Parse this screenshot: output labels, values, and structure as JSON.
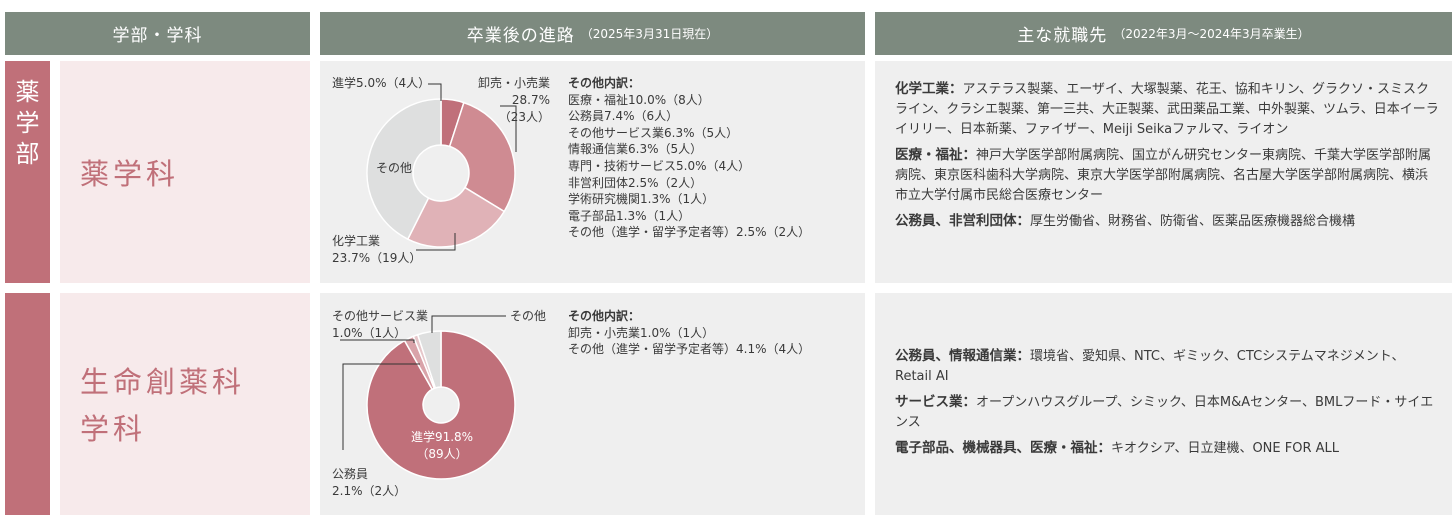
{
  "headers": {
    "faculty": "学部・学科",
    "career": "卒業後の進路",
    "career_note": "（2025年3月31日現在）",
    "employers": "主な就職先",
    "employers_note": "（2022年3月～2024年3月卒業生）"
  },
  "faculty": {
    "name": "薬学部",
    "chars": [
      "薬",
      "学",
      "部"
    ]
  },
  "departments": [
    {
      "name": "薬学科",
      "labels": {
        "shingaku": "進学5.0%（4人）",
        "oroshi": "卸売・小売業\n28.7%\n（23人）",
        "kagaku": "化学工業\n23.7%（19人）",
        "sonota": "その他"
      },
      "others_title": "その他内訳：",
      "others": [
        "医療・福祉10.0%（8人）",
        "公務員7.4%（6人）",
        "その他サービス業6.3%（5人）",
        "情報通信業6.3%（5人）",
        "専門・技術サービス5.0%（4人）",
        "非営利団体2.5%（2人）",
        "学術研究機関1.3%（1人）",
        "電子部品1.3%（1人）",
        "その他（進学・留学予定者等）2.5%（2人）"
      ],
      "employers": [
        {
          "key": "化学工業：",
          "text": "アステラス製薬、エーザイ、大塚製薬、花王、協和キリン、グラクソ・スミスクライン、クラシエ製薬、第一三共、大正製薬、武田薬品工業、中外製薬、ツムラ、日本イーライリリー、日本新薬、ファイザー、Meiji Seikaファルマ、ライオン"
        },
        {
          "key": "医療・福祉：",
          "text": "神戸大学医学部附属病院、国立がん研究センター東病院、千葉大学医学部附属病院、東京医科歯科大学病院、東京大学医学部附属病院、名古屋大学医学部附属病院、横浜市立大学付属市民総合医療センター"
        },
        {
          "key": "公務員、非営利団体：",
          "text": "厚生労働省、財務省、防衛省、医薬品医療機器総合機構"
        }
      ]
    },
    {
      "name": "生命創薬科学科",
      "labels": {
        "service": "その他サービス業\n1.0%（1人）",
        "sonota": "その他",
        "koumuin": "公務員\n2.1%（2人）",
        "shingaku": "進学91.8%\n（89人）"
      },
      "others_title": "その他内訳：",
      "others": [
        "卸売・小売業1.0%（1人）",
        "その他（進学・留学予定者等）4.1%（4人）"
      ],
      "employers": [
        {
          "key": "公務員、情報通信業：",
          "text": "環境省、愛知県、NTC、ギミック、CTCシステムマネジメント、Retail AI"
        },
        {
          "key": "サービス業：",
          "text": "オープンハウスグループ、シミック、日本M&Aセンター、BMLフード・サイエンス"
        },
        {
          "key": "電子部品、機械器具、医療・福祉：",
          "text": "キオクシア、日立建機、ONE FOR ALL"
        }
      ]
    }
  ],
  "chart_data": [
    {
      "type": "pie",
      "variant": "donut",
      "categories": [
        "進学",
        "卸売・小売業",
        "化学工業",
        "その他"
      ],
      "values": [
        5.0,
        28.7,
        23.7,
        42.6
      ],
      "counts": [
        4,
        23,
        19,
        null
      ],
      "colors": [
        "#c0707a",
        "#cf8b92",
        "#e0b2b7",
        "#dedfdf"
      ]
    },
    {
      "type": "pie",
      "variant": "donut",
      "categories": [
        "進学",
        "公務員",
        "その他サービス業",
        "その他"
      ],
      "values": [
        91.8,
        2.1,
        1.0,
        5.1
      ],
      "counts": [
        89,
        2,
        1,
        null
      ],
      "colors": [
        "#c0707a",
        "#d9a3a9",
        "#e6c6c9",
        "#dedfdf"
      ]
    }
  ]
}
